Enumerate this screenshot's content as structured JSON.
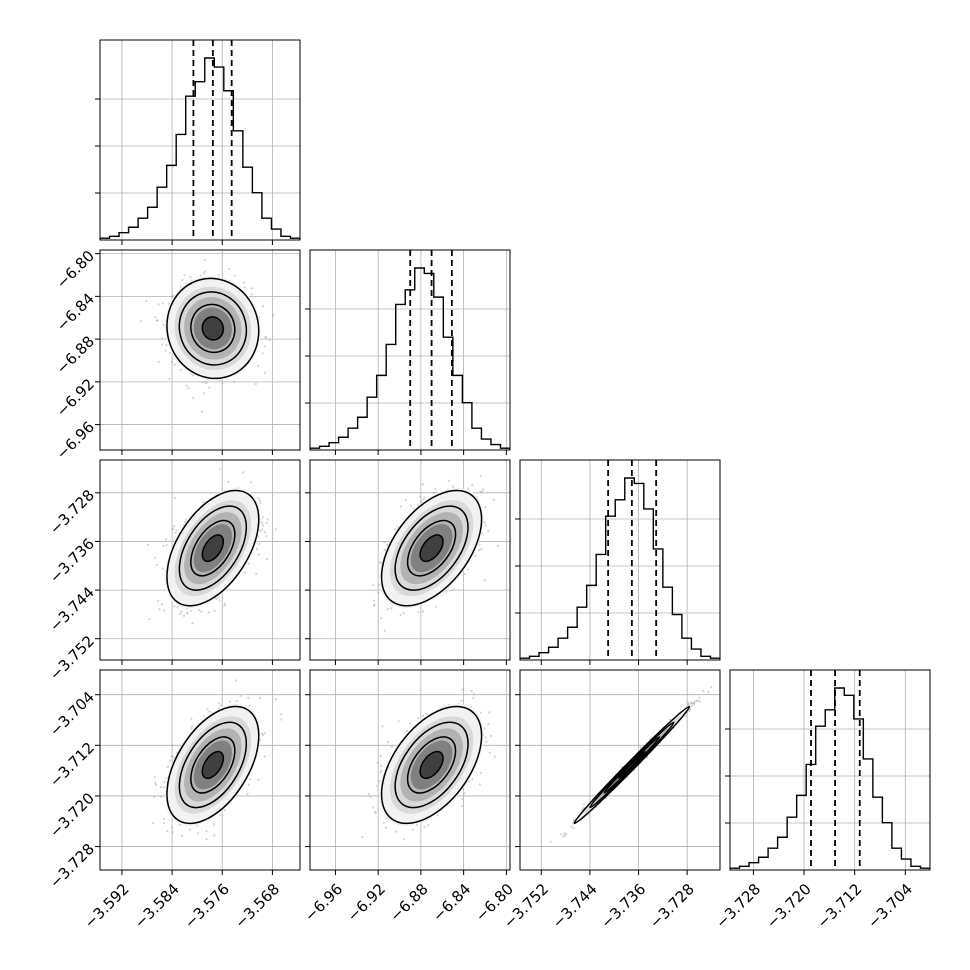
{
  "chart_data": {
    "type": "corner",
    "parameters": [
      {
        "index": 0,
        "range": [
          -3.5955,
          -3.5636
        ],
        "median": -3.5775,
        "q16": -3.5806,
        "q84": -3.5745,
        "ticks": [
          -3.592,
          -3.584,
          -3.576,
          -3.568
        ],
        "tick_labels": [
          "−3.592",
          "−3.584",
          "−3.576",
          "−3.568"
        ]
      },
      {
        "index": 1,
        "range": [
          -6.9838,
          -6.7966
        ],
        "median": -6.87,
        "q16": -6.89,
        "q84": -6.851,
        "ticks": [
          -6.96,
          -6.92,
          -6.88,
          -6.84,
          -6.8
        ],
        "tick_labels": [
          "−6.96",
          "−6.92",
          "−6.88",
          "−6.84",
          "−6.80"
        ]
      },
      {
        "index": 2,
        "range": [
          -3.7555,
          -3.7226
        ],
        "median": -3.7371,
        "q16": -3.741,
        "q84": -3.7331,
        "ticks": [
          -3.752,
          -3.744,
          -3.736,
          -3.728
        ],
        "tick_labels": [
          "−3.752",
          "−3.744",
          "−3.736",
          "−3.728"
        ]
      },
      {
        "index": 3,
        "range": [
          -3.7317,
          -3.7001
        ],
        "median": -3.7151,
        "q16": -3.7189,
        "q84": -3.7112,
        "ticks": [
          -3.728,
          -3.72,
          -3.712,
          -3.704
        ],
        "tick_labels": [
          "−3.728",
          "−3.720",
          "−3.712",
          "−3.704"
        ]
      }
    ],
    "histograms": [
      [
        0.01,
        0.02,
        0.04,
        0.07,
        0.12,
        0.18,
        0.29,
        0.41,
        0.58,
        0.79,
        0.87,
        1.0,
        0.95,
        0.82,
        0.6,
        0.4,
        0.26,
        0.12,
        0.06,
        0.02,
        0.01
      ],
      [
        0.01,
        0.02,
        0.04,
        0.07,
        0.12,
        0.18,
        0.29,
        0.41,
        0.58,
        0.8,
        0.88,
        1.0,
        0.97,
        0.84,
        0.62,
        0.41,
        0.26,
        0.12,
        0.06,
        0.03,
        0.01
      ],
      [
        0.01,
        0.02,
        0.04,
        0.07,
        0.12,
        0.18,
        0.29,
        0.41,
        0.58,
        0.79,
        0.88,
        1.0,
        0.97,
        0.83,
        0.61,
        0.4,
        0.25,
        0.12,
        0.06,
        0.02,
        0.01
      ],
      [
        0.01,
        0.02,
        0.04,
        0.07,
        0.12,
        0.18,
        0.29,
        0.41,
        0.58,
        0.79,
        0.88,
        1.0,
        0.96,
        0.83,
        0.61,
        0.4,
        0.26,
        0.12,
        0.06,
        0.02,
        0.01
      ]
    ],
    "correlations": {
      "1-0": -0.05,
      "2-0": 0.5,
      "2-1": 0.5,
      "3-0": 0.5,
      "3-1": 0.5,
      "3-2": 0.995
    },
    "contour_levels": [
      "0.5σ",
      "1σ",
      "1.5σ",
      "2σ"
    ],
    "colors": {
      "hist": "#000000",
      "points": "#9e9e9e",
      "grid": "#b0b0b0",
      "dashed": "#000000"
    },
    "grid": true
  }
}
